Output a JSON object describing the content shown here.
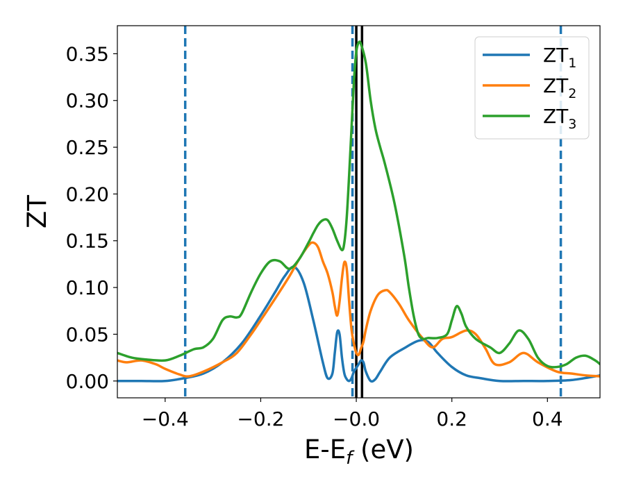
{
  "chart_data": {
    "type": "line",
    "xlabel": {
      "main": "E-E",
      "sub": "f",
      "unit": " (eV)"
    },
    "ylabel": "ZT",
    "xlim": [
      -0.5,
      0.51
    ],
    "ylim": [
      -0.018,
      0.38
    ],
    "xticks": [
      -0.4,
      -0.2,
      0.0,
      0.2,
      0.4
    ],
    "xtick_labels": [
      "−0.4",
      "−0.2",
      "−0.0",
      "0.2",
      "0.4"
    ],
    "yticks": [
      0.0,
      0.05,
      0.1,
      0.15,
      0.2,
      0.25,
      0.3,
      0.35
    ],
    "ytick_labels": [
      "0.00",
      "0.05",
      "0.10",
      "0.15",
      "0.20",
      "0.25",
      "0.30",
      "0.35"
    ],
    "grid": false,
    "legend_position": "top-right",
    "vlines_dashed": [
      -0.358,
      -0.008,
      0.428
    ],
    "vlines_solid": [
      0.0,
      0.012
    ],
    "series": [
      {
        "name": "ZT",
        "sub": "1",
        "color": "#1f77b4",
        "x": [
          -0.5,
          -0.45,
          -0.4,
          -0.36,
          -0.32,
          -0.28,
          -0.24,
          -0.2,
          -0.17,
          -0.15,
          -0.13,
          -0.11,
          -0.09,
          -0.07,
          -0.06,
          -0.05,
          -0.045,
          -0.04,
          -0.035,
          -0.03,
          -0.025,
          -0.02,
          -0.015,
          -0.01,
          -0.005,
          0.0,
          0.005,
          0.01,
          0.015,
          0.02,
          0.03,
          0.04,
          0.05,
          0.07,
          0.1,
          0.13,
          0.15,
          0.17,
          0.2,
          0.23,
          0.26,
          0.3,
          0.35,
          0.4,
          0.45,
          0.5,
          0.51
        ],
        "y": [
          0.0,
          0.0,
          0.0,
          0.003,
          0.008,
          0.02,
          0.04,
          0.07,
          0.095,
          0.112,
          0.122,
          0.105,
          0.065,
          0.02,
          0.003,
          0.008,
          0.03,
          0.052,
          0.05,
          0.025,
          0.008,
          0.002,
          0.0,
          0.003,
          0.01,
          0.014,
          0.018,
          0.022,
          0.02,
          0.01,
          0.0,
          0.002,
          0.01,
          0.025,
          0.035,
          0.043,
          0.042,
          0.03,
          0.015,
          0.006,
          0.003,
          0.0,
          0.0,
          0.0,
          0.001,
          0.005,
          0.006
        ]
      },
      {
        "name": "ZT",
        "sub": "2",
        "color": "#ff7f0e",
        "x": [
          -0.5,
          -0.48,
          -0.45,
          -0.42,
          -0.4,
          -0.37,
          -0.35,
          -0.32,
          -0.28,
          -0.25,
          -0.22,
          -0.2,
          -0.17,
          -0.14,
          -0.12,
          -0.1,
          -0.09,
          -0.08,
          -0.07,
          -0.06,
          -0.05,
          -0.045,
          -0.04,
          -0.035,
          -0.03,
          -0.025,
          -0.02,
          -0.015,
          -0.01,
          -0.005,
          0.0,
          0.005,
          0.01,
          0.015,
          0.02,
          0.03,
          0.045,
          0.06,
          0.07,
          0.09,
          0.11,
          0.14,
          0.16,
          0.18,
          0.2,
          0.23,
          0.25,
          0.27,
          0.29,
          0.32,
          0.35,
          0.38,
          0.42,
          0.45,
          0.48,
          0.51
        ],
        "y": [
          0.022,
          0.02,
          0.022,
          0.018,
          0.013,
          0.007,
          0.005,
          0.01,
          0.02,
          0.03,
          0.05,
          0.065,
          0.088,
          0.112,
          0.13,
          0.145,
          0.148,
          0.143,
          0.128,
          0.115,
          0.095,
          0.08,
          0.07,
          0.085,
          0.11,
          0.127,
          0.12,
          0.085,
          0.055,
          0.04,
          0.03,
          0.028,
          0.035,
          0.042,
          0.055,
          0.075,
          0.092,
          0.097,
          0.095,
          0.082,
          0.065,
          0.045,
          0.036,
          0.045,
          0.047,
          0.054,
          0.05,
          0.035,
          0.018,
          0.02,
          0.03,
          0.02,
          0.01,
          0.008,
          0.006,
          0.005
        ]
      },
      {
        "name": "ZT",
        "sub": "3",
        "color": "#2ca02c",
        "x": [
          -0.5,
          -0.47,
          -0.44,
          -0.4,
          -0.37,
          -0.34,
          -0.32,
          -0.3,
          -0.28,
          -0.265,
          -0.25,
          -0.24,
          -0.22,
          -0.2,
          -0.18,
          -0.16,
          -0.14,
          -0.12,
          -0.1,
          -0.09,
          -0.08,
          -0.07,
          -0.06,
          -0.05,
          -0.04,
          -0.03,
          -0.025,
          -0.02,
          -0.015,
          -0.01,
          -0.005,
          0.0,
          0.005,
          0.01,
          0.02,
          0.03,
          0.04,
          0.05,
          0.06,
          0.08,
          0.1,
          0.11,
          0.12,
          0.13,
          0.14,
          0.15,
          0.17,
          0.19,
          0.2,
          0.21,
          0.22,
          0.23,
          0.25,
          0.28,
          0.3,
          0.32,
          0.34,
          0.36,
          0.38,
          0.4,
          0.42,
          0.44,
          0.46,
          0.48,
          0.5,
          0.51
        ],
        "y": [
          0.03,
          0.025,
          0.023,
          0.022,
          0.027,
          0.034,
          0.036,
          0.045,
          0.065,
          0.069,
          0.068,
          0.072,
          0.095,
          0.115,
          0.128,
          0.128,
          0.12,
          0.13,
          0.148,
          0.158,
          0.167,
          0.172,
          0.172,
          0.163,
          0.15,
          0.14,
          0.148,
          0.175,
          0.22,
          0.27,
          0.32,
          0.352,
          0.362,
          0.36,
          0.34,
          0.3,
          0.27,
          0.25,
          0.232,
          0.19,
          0.135,
          0.1,
          0.07,
          0.05,
          0.045,
          0.046,
          0.046,
          0.05,
          0.065,
          0.08,
          0.072,
          0.058,
          0.045,
          0.036,
          0.03,
          0.04,
          0.054,
          0.045,
          0.025,
          0.016,
          0.015,
          0.018,
          0.025,
          0.027,
          0.022,
          0.018
        ]
      }
    ]
  }
}
